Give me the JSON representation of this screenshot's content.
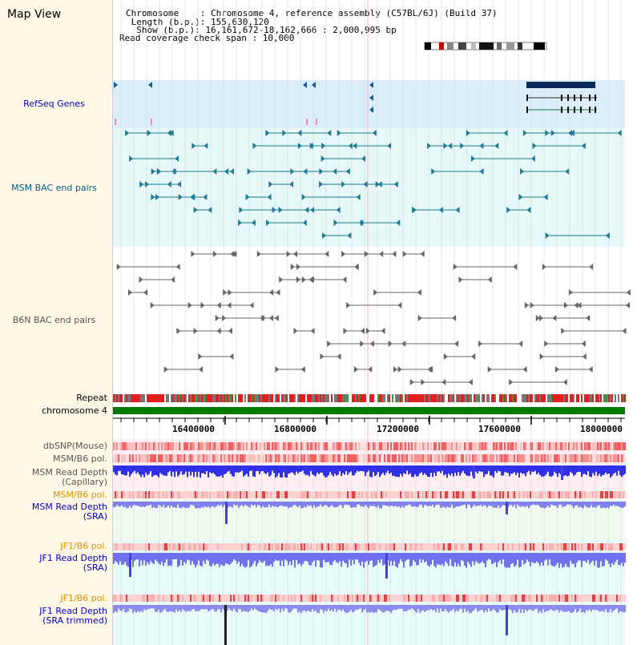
{
  "window": {
    "title": "Map View"
  },
  "header": {
    "line1_key": "Chromosome    ",
    "line1_val": ": Chromosome 4, reference assembly (C57BL/6J) (Build 37)",
    "line2_key": " Length (b.p.)",
    "line2_val": ": 155,630,120",
    "line3_key": "  Show (b.p.)",
    "line3_val": ": 16,161,672-18,162,666 : 2,000,995 bp",
    "line4": "Read coverage check span : 10,000"
  },
  "tracks": {
    "refseq": "RefSeq Genes",
    "msm_bac": "MSM BAC end pairs",
    "b6n_bac": "B6N BAC end pairs",
    "repeat": "Repeat",
    "chromosome": "chromosome 4",
    "dbsnp": "dbSNP(Mouse)",
    "msm_pol": "MSM/B6 pol.",
    "msm_cap": "MSM Read Depth\n(Capillary)",
    "msm_pol2": "MSM/B6 pol.",
    "msm_sra": "MSM Read Depth\n(SRA)",
    "jf1_pol": "JF1/B6 pol.",
    "jf1_sra": "JF1 Read Depth\n(SRA)",
    "jf1_pol2": "JF1/B6 pol.",
    "jf1_trim": "JF1 Read Depth\n(SRA trimmed)"
  },
  "axis": {
    "ticks": [
      "16400000",
      "16800000",
      "17200000",
      "17600000",
      "18000000"
    ]
  },
  "colors": {
    "accent_blue": "#0000c0",
    "teal": "#006080",
    "orange": "#e09000",
    "gene_navy": "#0a2a5c",
    "chrom_green": "#007a00"
  }
}
